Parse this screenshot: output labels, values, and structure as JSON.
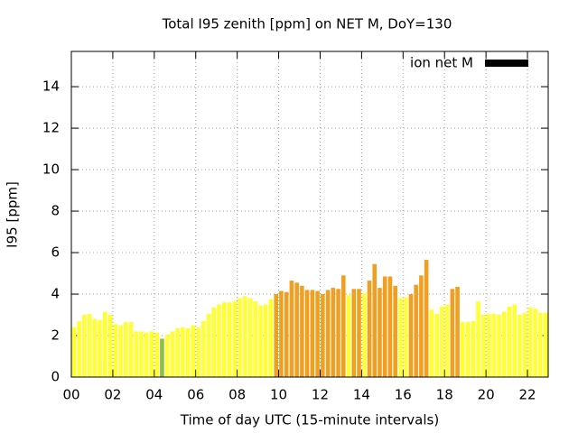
{
  "chart_data": {
    "type": "bar",
    "title": "Total I95 zenith [ppm] on NET M, DoY=130",
    "xlabel": "Time of day UTC (15-minute intervals)",
    "ylabel": "I95 [ppm]",
    "x": [
      0,
      0.25,
      0.5,
      0.75,
      1,
      1.25,
      1.5,
      1.75,
      2,
      2.25,
      2.5,
      2.75,
      3,
      3.25,
      3.5,
      3.75,
      4,
      4.25,
      4.5,
      4.75,
      5,
      5.25,
      5.5,
      5.75,
      6,
      6.25,
      6.5,
      6.75,
      7,
      7.25,
      7.5,
      7.75,
      8,
      8.25,
      8.5,
      8.75,
      9,
      9.25,
      9.5,
      9.75,
      10,
      10.25,
      10.5,
      10.75,
      11,
      11.25,
      11.5,
      11.75,
      12,
      12.25,
      12.5,
      12.75,
      13,
      13.25,
      13.5,
      13.75,
      14,
      14.25,
      14.5,
      14.75,
      15,
      15.25,
      15.5,
      15.75,
      16,
      16.25,
      16.5,
      16.75,
      17,
      17.25,
      17.5,
      17.75,
      18,
      18.25,
      18.5,
      18.75,
      19,
      19.25,
      19.5,
      19.75,
      20,
      20.25,
      20.5,
      20.75,
      21,
      21.25,
      21.5,
      21.75,
      22,
      22.25,
      22.5,
      22.75
    ],
    "series": [
      {
        "name": "ion net M",
        "color": "#000000",
        "values": [
          2.4,
          2.7,
          3.0,
          3.05,
          2.8,
          2.75,
          3.15,
          3.0,
          2.55,
          2.5,
          2.65,
          2.65,
          2.2,
          2.2,
          2.15,
          2.2,
          2.15,
          1.85,
          2.05,
          2.2,
          2.35,
          2.4,
          2.35,
          2.5,
          2.4,
          2.7,
          3.05,
          3.35,
          3.5,
          3.6,
          3.6,
          3.65,
          3.8,
          3.9,
          3.8,
          3.65,
          3.45,
          3.5,
          3.75,
          4.0,
          4.15,
          4.1,
          4.65,
          4.55,
          4.4,
          4.2,
          4.2,
          4.15,
          4.0,
          4.2,
          4.3,
          4.25,
          4.9,
          3.95,
          4.25,
          4.25,
          4.05,
          4.65,
          5.45,
          4.3,
          4.85,
          4.85,
          4.4,
          3.8,
          3.85,
          4.0,
          4.45,
          4.9,
          5.65,
          3.25,
          3.05,
          3.4,
          3.5,
          4.25,
          4.35,
          2.65,
          2.65,
          2.7,
          3.65,
          3.0,
          3.05,
          3.05,
          3.0,
          3.15,
          3.4,
          3.5,
          3.0,
          3.1,
          3.35,
          3.3,
          3.1,
          3.1
        ],
        "colors": [
          "#ffff33",
          "#ffff33",
          "#ffff33",
          "#ffff33",
          "#ffff33",
          "#ffff33",
          "#ffff33",
          "#ffff33",
          "#ffff33",
          "#ffff33",
          "#ffff33",
          "#ffff33",
          "#ffff33",
          "#ffff33",
          "#ffff33",
          "#ffff33",
          "#ffff33",
          "#88c040",
          "#ffff33",
          "#ffff33",
          "#ffff33",
          "#ffff33",
          "#ffff33",
          "#ffff33",
          "#ffff33",
          "#ffff33",
          "#ffff33",
          "#ffff33",
          "#ffff33",
          "#ffff33",
          "#ffff33",
          "#ffff33",
          "#ffff33",
          "#ffff33",
          "#ffff33",
          "#ffff33",
          "#ffff33",
          "#ffff33",
          "#ffff33",
          "#f0a020",
          "#f0a020",
          "#f0a020",
          "#f0a020",
          "#f0a020",
          "#f0a020",
          "#f0a020",
          "#f0a020",
          "#f0a020",
          "#f0a020",
          "#f0a020",
          "#f0a020",
          "#f0a020",
          "#f0a020",
          "#ffff33",
          "#f0a020",
          "#f0a020",
          "#ffff33",
          "#f0a020",
          "#f0a020",
          "#f0a020",
          "#f0a020",
          "#f0a020",
          "#f0a020",
          "#ffff33",
          "#ffff33",
          "#f0a020",
          "#f0a020",
          "#f0a020",
          "#f0a020",
          "#ffff33",
          "#ffff33",
          "#ffff33",
          "#ffff33",
          "#f0a020",
          "#f0a020",
          "#ffff33",
          "#ffff33",
          "#ffff33",
          "#ffff33",
          "#ffff33",
          "#ffff33",
          "#ffff33",
          "#ffff33",
          "#ffff33",
          "#ffff33",
          "#ffff33",
          "#ffff33",
          "#ffff33",
          "#ffff33",
          "#ffff33",
          "#ffff33",
          "#ffff33"
        ]
      }
    ],
    "xlim": [
      0,
      23
    ],
    "xticks": [
      {
        "value": 0,
        "label": "00"
      },
      {
        "value": 2,
        "label": "02"
      },
      {
        "value": 4,
        "label": "04"
      },
      {
        "value": 6,
        "label": "06"
      },
      {
        "value": 8,
        "label": "08"
      },
      {
        "value": 10,
        "label": "10"
      },
      {
        "value": 12,
        "label": "12"
      },
      {
        "value": 14,
        "label": "14"
      },
      {
        "value": 16,
        "label": "16"
      },
      {
        "value": 18,
        "label": "18"
      },
      {
        "value": 20,
        "label": "20"
      },
      {
        "value": 22,
        "label": "22"
      }
    ],
    "ylim": [
      0,
      15.7
    ],
    "yticks": [
      0,
      2,
      4,
      6,
      8,
      10,
      12,
      14
    ],
    "grid": true,
    "legend": "top-right"
  }
}
